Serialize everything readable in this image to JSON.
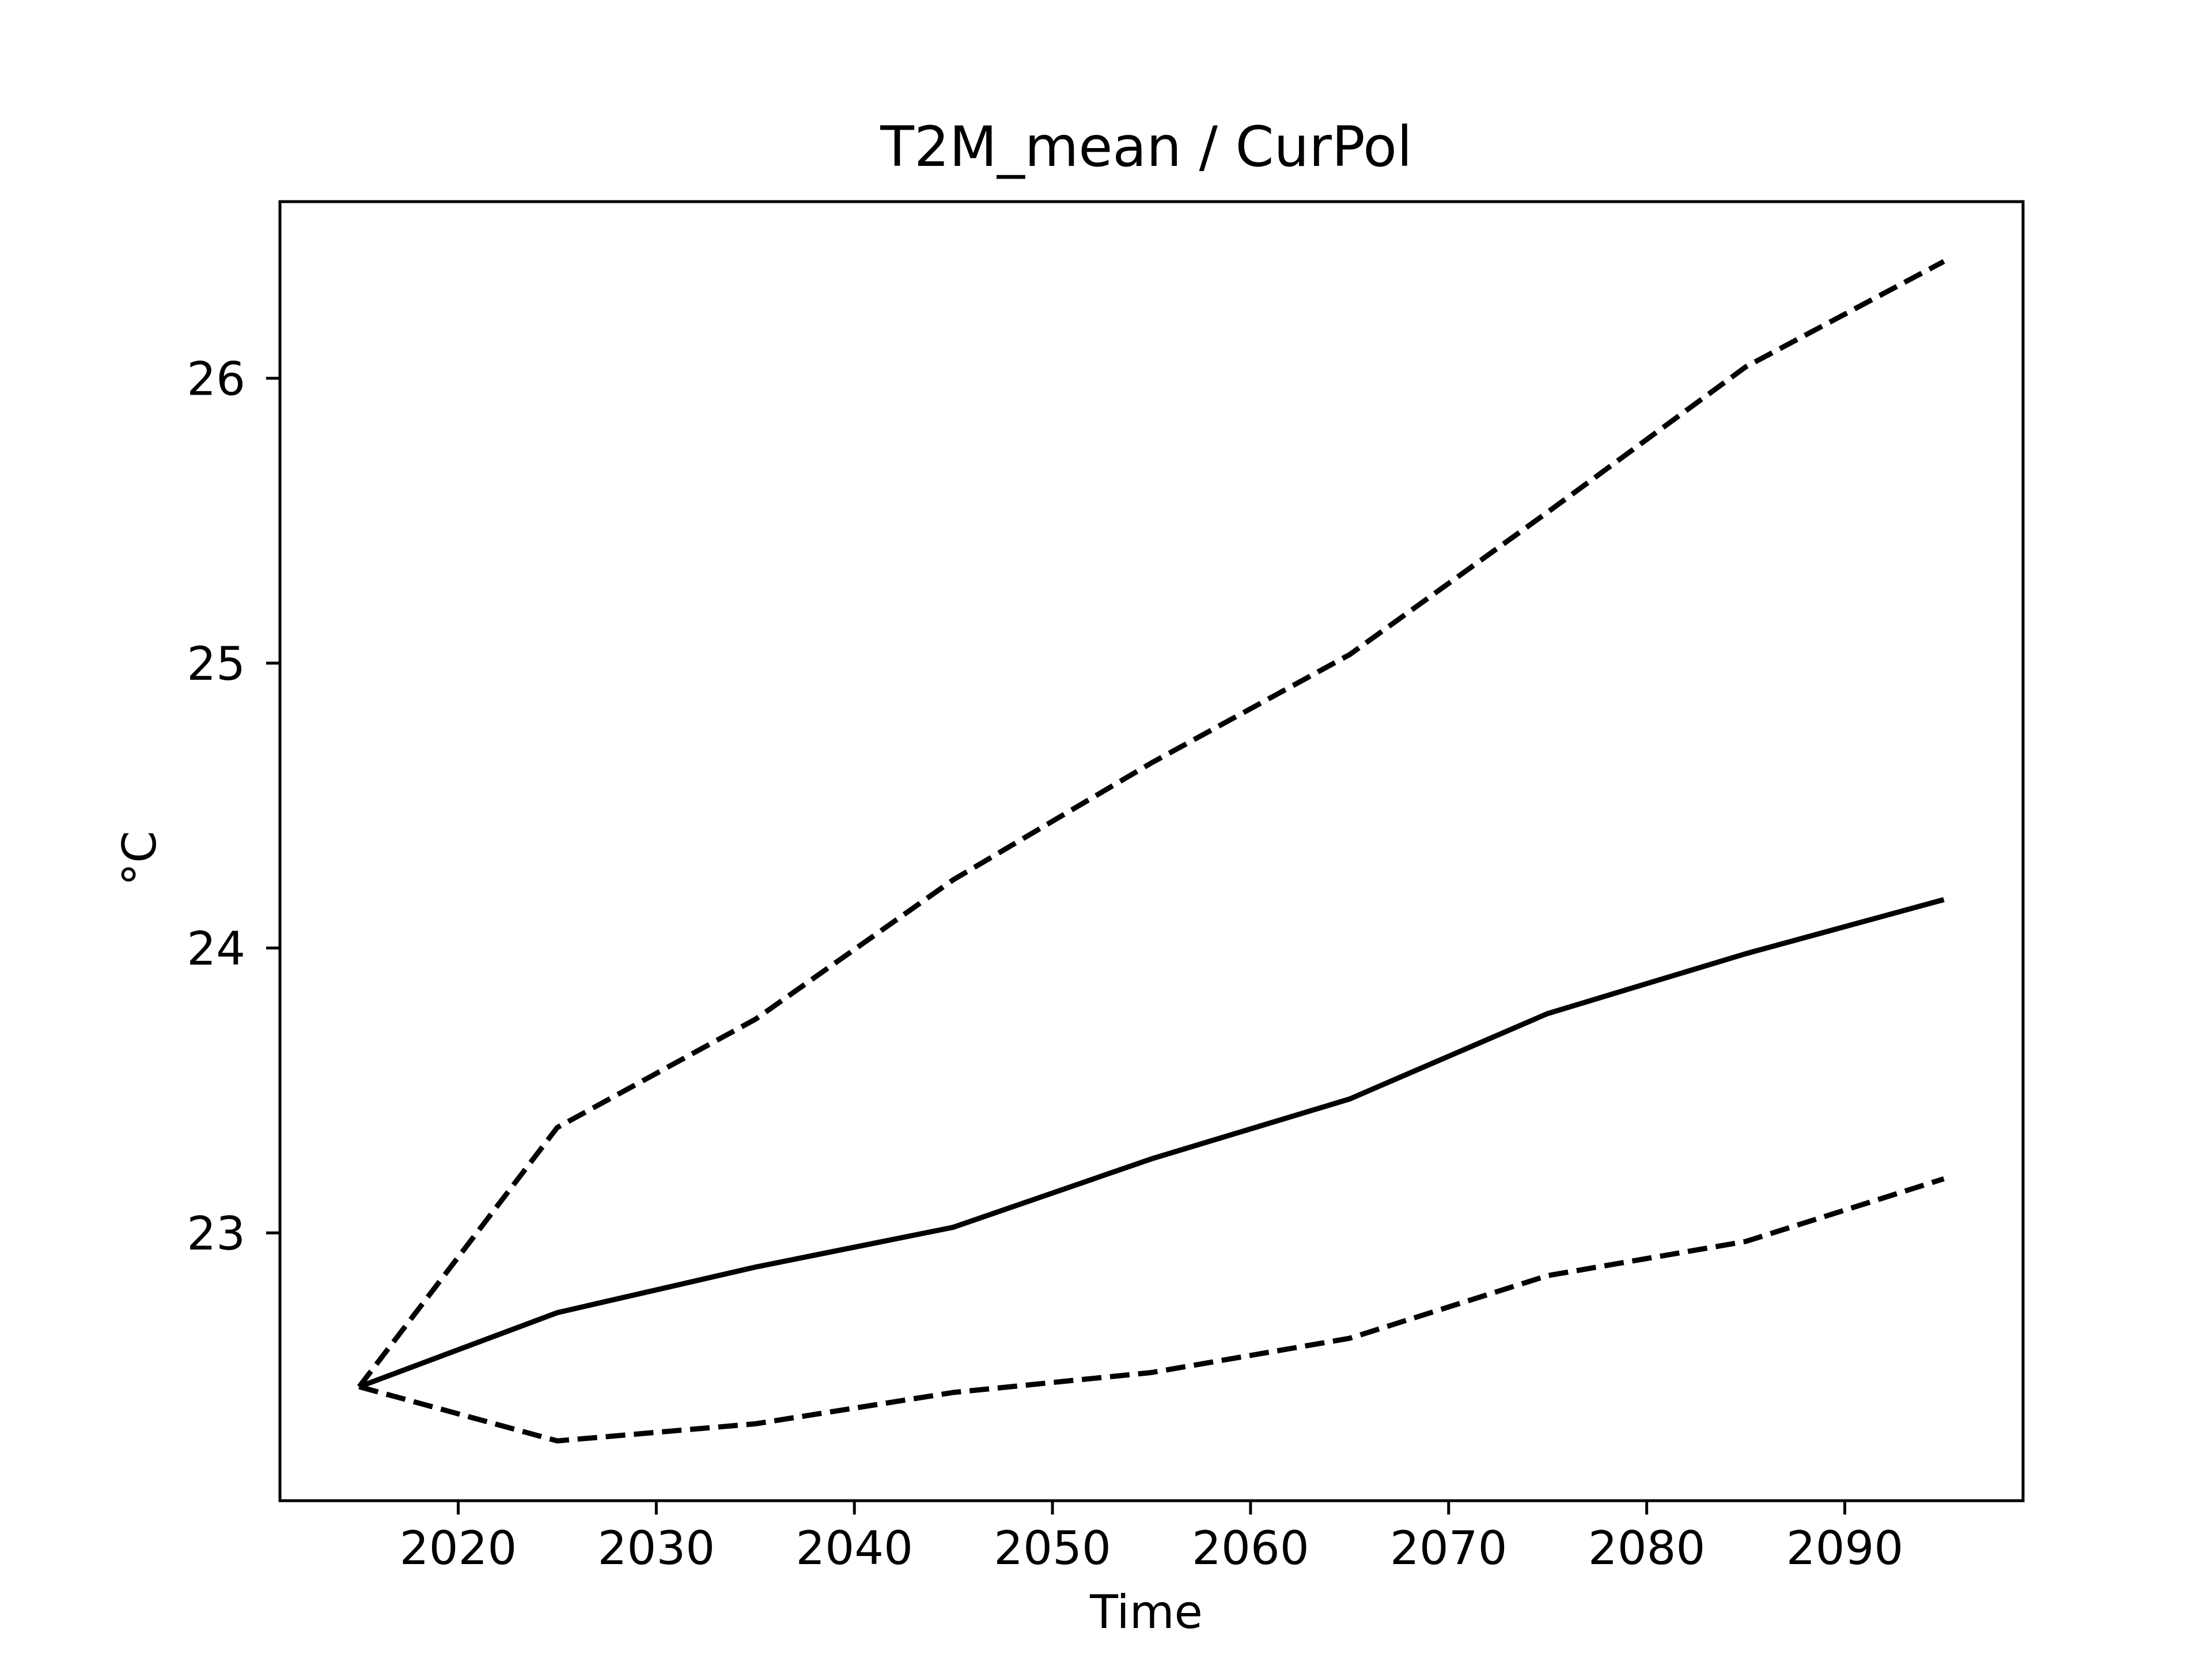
{
  "chart_data": {
    "type": "line",
    "title": "T2M_mean / CurPol",
    "xlabel": "Time",
    "ylabel": "°C",
    "x": [
      2015,
      2025,
      2035,
      2045,
      2055,
      2065,
      2075,
      2085,
      2095
    ],
    "xlim": [
      2011,
      2099
    ],
    "ylim": [
      22.06,
      26.62
    ],
    "xticks": [
      2020,
      2030,
      2040,
      2050,
      2060,
      2070,
      2080,
      2090
    ],
    "xtick_labels": [
      "2020",
      "2030",
      "2040",
      "2050",
      "2060",
      "2070",
      "2080",
      "2090"
    ],
    "yticks": [
      23,
      24,
      25,
      26
    ],
    "ytick_labels": [
      "23",
      "24",
      "25",
      "26"
    ],
    "grid": false,
    "series": [
      {
        "style": "solid",
        "color": "#000000",
        "values": [
          22.46,
          22.72,
          22.88,
          23.02,
          23.26,
          23.47,
          23.77,
          23.98,
          24.17
        ]
      },
      {
        "style": "dashed",
        "color": "#000000",
        "values": [
          22.46,
          23.37,
          23.75,
          24.24,
          24.65,
          25.03,
          25.53,
          26.04,
          26.41
        ]
      },
      {
        "style": "dashed",
        "color": "#000000",
        "values": [
          22.46,
          22.27,
          22.33,
          22.44,
          22.51,
          22.63,
          22.85,
          22.97,
          23.19
        ]
      }
    ]
  }
}
